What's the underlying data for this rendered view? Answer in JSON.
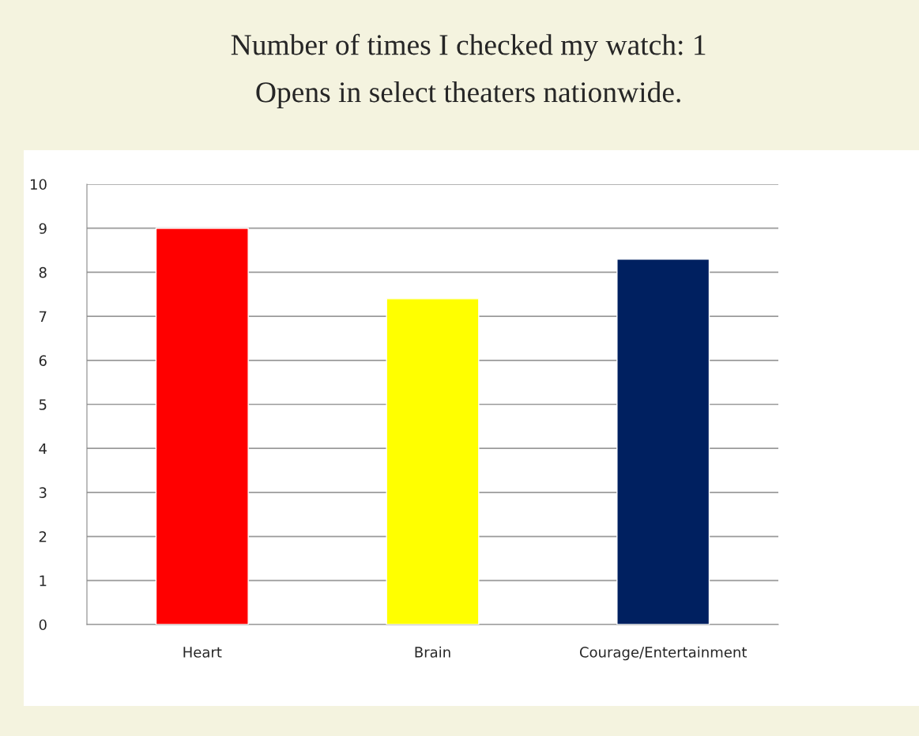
{
  "chart_data": {
    "type": "bar",
    "title": "Number of times I checked my watch: 1",
    "subtitle": "Opens in select theaters nationwide.",
    "categories": [
      "Heart",
      "Brain",
      "Courage/Entertainment"
    ],
    "values": [
      9.0,
      7.4,
      8.3
    ],
    "colors": [
      "#ff0000",
      "#ffff00",
      "#002060"
    ],
    "ylim": [
      0,
      10
    ],
    "yticks": [
      0,
      1,
      2,
      3,
      4,
      5,
      6,
      7,
      8,
      9,
      10
    ],
    "grid": "y",
    "legend": false
  }
}
